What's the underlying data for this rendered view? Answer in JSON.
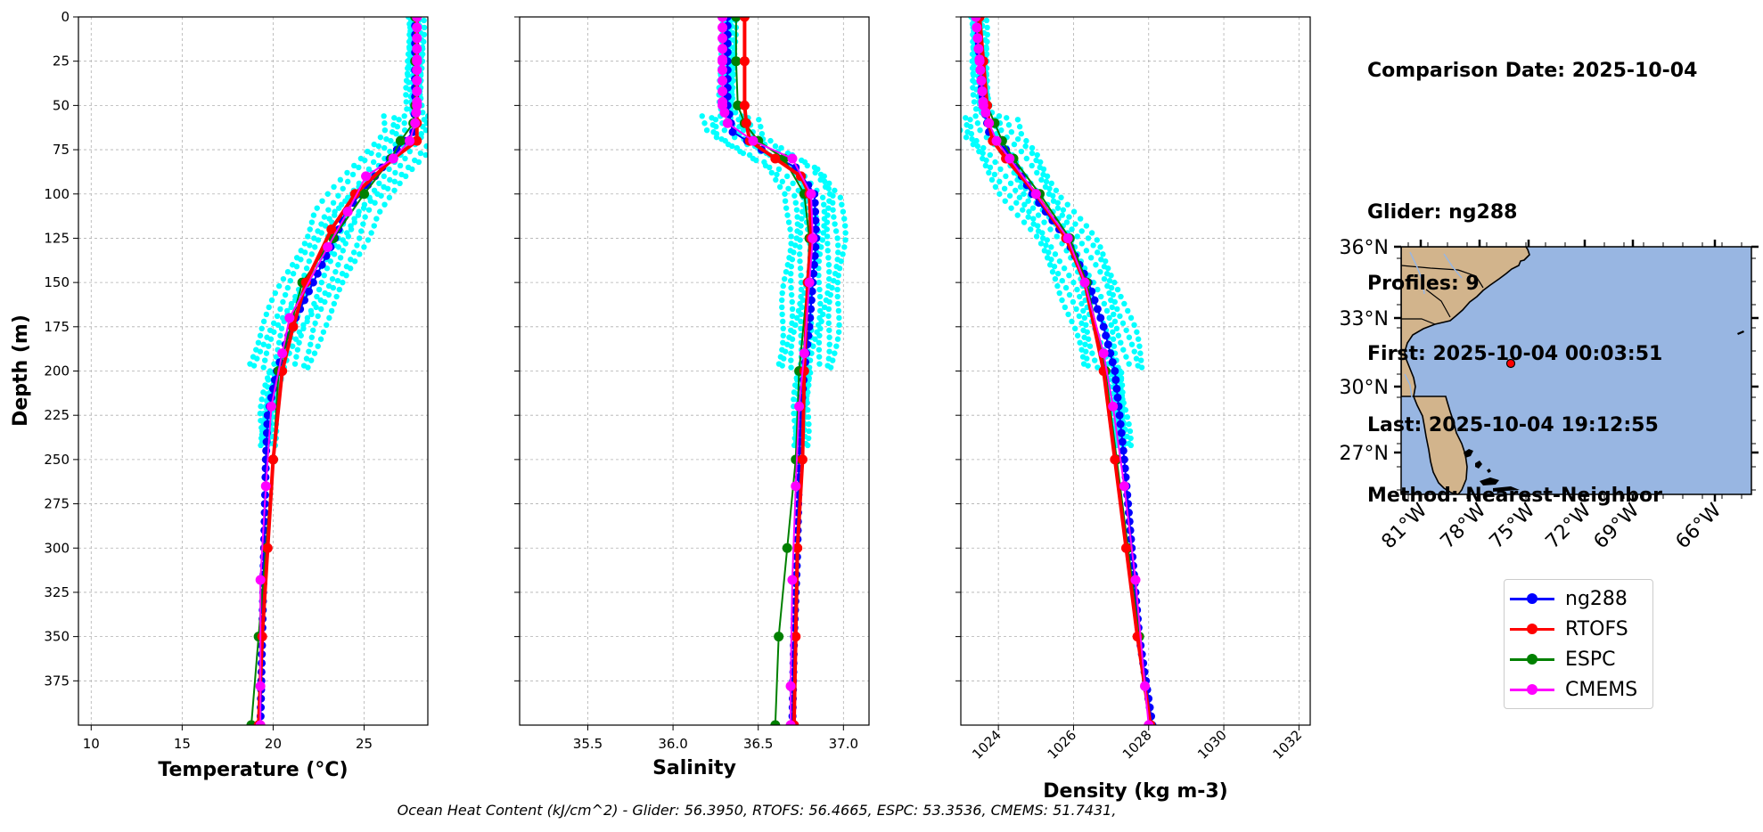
{
  "info": {
    "comparison_date": "Comparison Date: 2025-10-04",
    "glider": "Glider: ng288",
    "profiles": "Profiles: 9",
    "first": "First: 2025-10-04 00:03:51",
    "last": "Last: 2025-10-04 19:12:55",
    "method": "Method: Nearest-Neighbor"
  },
  "footer": "Ocean Heat Content (kJ/cm^2) - Glider: 56.3950,  RTOFS: 56.4665,  ESPC: 53.3536,  CMEMS: 51.7431,",
  "legend": [
    {
      "label": "ng288",
      "color": "#0000ff"
    },
    {
      "label": "RTOFS",
      "color": "#ff0000"
    },
    {
      "label": "ESPC",
      "color": "#008000"
    },
    {
      "label": "CMEMS",
      "color": "#ff00ff"
    }
  ],
  "colors": {
    "profiles_color": "#00ffff",
    "land": "#d2b48c",
    "ocean": "#98b6e2",
    "marker": "#ff0000"
  },
  "chart_data": [
    {
      "type": "line",
      "xlabel": "Temperature (°C)",
      "ylabel": "Depth (m)",
      "xlim": [
        9.3,
        28.5
      ],
      "ylim": [
        400,
        0
      ],
      "xticks": [
        10,
        15,
        20,
        25
      ],
      "yticks": [
        0,
        25,
        50,
        75,
        100,
        125,
        150,
        175,
        200,
        225,
        250,
        275,
        300,
        325,
        350,
        375
      ],
      "grid": true,
      "series": [
        {
          "name": "ng288",
          "depth": [
            0,
            25,
            50,
            65,
            75,
            90,
            100,
            110,
            125,
            150,
            175,
            200,
            225,
            250,
            300,
            350,
            400
          ],
          "values": [
            27.8,
            27.8,
            27.8,
            27.7,
            26.8,
            25.6,
            24.8,
            24.0,
            23.4,
            22.2,
            21.0,
            20.2,
            19.7,
            19.6,
            19.5,
            19.4,
            19.3
          ]
        },
        {
          "name": "RTOFS",
          "depth": [
            0,
            25,
            50,
            60,
            70,
            80,
            100,
            120,
            150,
            175,
            200,
            250,
            300,
            350,
            400
          ],
          "values": [
            27.9,
            27.9,
            27.9,
            27.9,
            27.9,
            26.6,
            24.5,
            23.2,
            21.8,
            21.1,
            20.5,
            20.0,
            19.7,
            19.4,
            19.2
          ]
        },
        {
          "name": "ESPC",
          "depth": [
            0,
            25,
            50,
            60,
            70,
            80,
            100,
            125,
            150,
            200,
            250,
            300,
            350,
            400
          ],
          "values": [
            27.8,
            27.8,
            27.8,
            27.7,
            27.0,
            26.5,
            25.0,
            23.3,
            21.6,
            20.3,
            20.0,
            19.6,
            19.2,
            18.8
          ]
        },
        {
          "name": "CMEMS",
          "depth": [
            0,
            25,
            50,
            60,
            70,
            80,
            90,
            110,
            130,
            170,
            190,
            220,
            265,
            318,
            378,
            400
          ],
          "values": [
            27.9,
            27.9,
            27.9,
            27.8,
            27.5,
            26.6,
            25.1,
            24.1,
            23.0,
            20.9,
            20.5,
            19.9,
            19.6,
            19.3,
            19.3,
            19.3
          ]
        }
      ]
    },
    {
      "type": "line",
      "xlabel": "Salinity",
      "ylim": [
        400,
        0
      ],
      "xlim": [
        35.1,
        37.15
      ],
      "xticks": [
        35.5,
        36.0,
        36.5,
        37.0
      ],
      "grid": true,
      "series": [
        {
          "name": "ng288",
          "depth": [
            0,
            25,
            50,
            65,
            75,
            85,
            100,
            125,
            150,
            175,
            200,
            225,
            250,
            300,
            350,
            400
          ],
          "values": [
            36.32,
            36.32,
            36.32,
            36.35,
            36.52,
            36.72,
            36.83,
            36.84,
            36.82,
            36.8,
            36.77,
            36.75,
            36.74,
            36.73,
            36.71,
            36.7
          ]
        },
        {
          "name": "RTOFS",
          "depth": [
            0,
            25,
            50,
            60,
            70,
            80,
            90,
            100,
            125,
            150,
            200,
            250,
            300,
            350,
            400
          ],
          "values": [
            36.42,
            36.42,
            36.42,
            36.43,
            36.45,
            36.6,
            36.75,
            36.8,
            36.81,
            36.79,
            36.77,
            36.76,
            36.73,
            36.72,
            36.71
          ]
        },
        {
          "name": "ESPC",
          "depth": [
            0,
            25,
            50,
            60,
            70,
            80,
            100,
            125,
            150,
            200,
            250,
            300,
            350,
            400
          ],
          "values": [
            36.37,
            36.37,
            36.38,
            36.42,
            36.5,
            36.65,
            36.77,
            36.8,
            36.79,
            36.74,
            36.72,
            36.67,
            36.62,
            36.6
          ]
        },
        {
          "name": "CMEMS",
          "depth": [
            0,
            25,
            50,
            60,
            70,
            80,
            100,
            125,
            150,
            190,
            220,
            265,
            318,
            378,
            400
          ],
          "values": [
            36.29,
            36.29,
            36.29,
            36.32,
            36.47,
            36.7,
            36.81,
            36.82,
            36.8,
            36.77,
            36.74,
            36.72,
            36.7,
            36.69,
            36.69
          ]
        }
      ]
    },
    {
      "type": "line",
      "xlabel": "Density (kg m-3)",
      "ylim": [
        400,
        0
      ],
      "xlim": [
        1023.0,
        1032.3
      ],
      "xticks": [
        1024,
        1026,
        1028,
        1030,
        1032
      ],
      "grid": true,
      "series": [
        {
          "name": "ng288",
          "depth": [
            0,
            25,
            50,
            65,
            75,
            100,
            125,
            150,
            175,
            200,
            250,
            300,
            350,
            400
          ],
          "values": [
            1023.45,
            1023.5,
            1023.6,
            1023.75,
            1024.2,
            1024.9,
            1025.8,
            1026.4,
            1026.8,
            1027.1,
            1027.35,
            1027.55,
            1027.75,
            1028.1
          ]
        },
        {
          "name": "RTOFS",
          "depth": [
            0,
            25,
            50,
            60,
            70,
            80,
            100,
            125,
            150,
            200,
            250,
            300,
            350,
            400
          ],
          "values": [
            1023.5,
            1023.6,
            1023.7,
            1023.75,
            1023.85,
            1024.2,
            1025.0,
            1025.8,
            1026.3,
            1026.8,
            1027.1,
            1027.4,
            1027.7,
            1028.05
          ]
        },
        {
          "name": "ESPC",
          "depth": [
            0,
            25,
            50,
            60,
            70,
            80,
            100,
            125,
            150,
            200,
            250,
            300,
            350,
            400
          ],
          "values": [
            1023.45,
            1023.55,
            1023.7,
            1023.9,
            1024.1,
            1024.4,
            1025.1,
            1025.9,
            1026.35,
            1026.85,
            1027.15,
            1027.45,
            1027.75,
            1028.05
          ]
        },
        {
          "name": "CMEMS",
          "depth": [
            0,
            25,
            50,
            60,
            70,
            80,
            100,
            125,
            150,
            190,
            220,
            265,
            318,
            378,
            400
          ],
          "values": [
            1023.4,
            1023.5,
            1023.6,
            1023.75,
            1023.95,
            1024.3,
            1025.0,
            1025.85,
            1026.3,
            1026.8,
            1027.05,
            1027.35,
            1027.65,
            1027.9,
            1028.0
          ]
        }
      ]
    },
    {
      "type": "map",
      "lat_ticks": [
        "36°N",
        "33°N",
        "30°N",
        "27°N"
      ],
      "lon_ticks": [
        "81°W",
        "78°W",
        "75°W",
        "72°W",
        "69°W",
        "66°W"
      ],
      "glider_position": {
        "lon": -77.0,
        "lat": 31.0
      }
    }
  ]
}
